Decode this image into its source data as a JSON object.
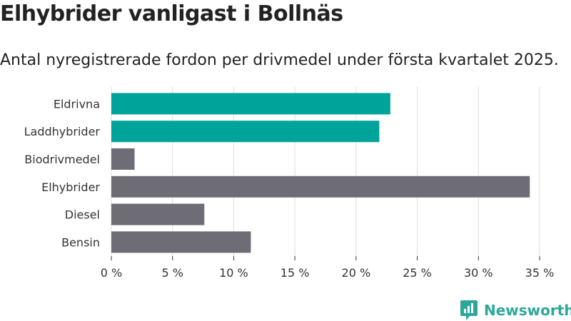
{
  "header": {
    "title": "Elhybrider vanligast i Bollnäs",
    "subtitle": "Antal nyregistrerade fordon per drivmedel under första kvartalet 2025."
  },
  "brand": {
    "name": "Newsworthy",
    "color": "#2ba89a"
  },
  "colors": {
    "highlight": "#00a39a",
    "default": "#6e6d75",
    "grid": "#dddddd"
  },
  "chart_data": {
    "type": "bar",
    "orientation": "horizontal",
    "categories": [
      "Eldrivna",
      "Laddhybrider",
      "Biodrivmedel",
      "Elhybrider",
      "Diesel",
      "Bensin"
    ],
    "values": [
      22.8,
      21.9,
      1.9,
      34.2,
      7.6,
      11.4
    ],
    "highlight": [
      true,
      true,
      false,
      false,
      false,
      false
    ],
    "xlim": [
      0,
      35
    ],
    "xticks": [
      0,
      5,
      10,
      15,
      20,
      25,
      30,
      35
    ],
    "tick_labels": [
      "0 %",
      "5 %",
      "10 %",
      "15 %",
      "20 %",
      "25 %",
      "30 %",
      "35 %"
    ],
    "grid": "vertical",
    "legend": "none"
  }
}
